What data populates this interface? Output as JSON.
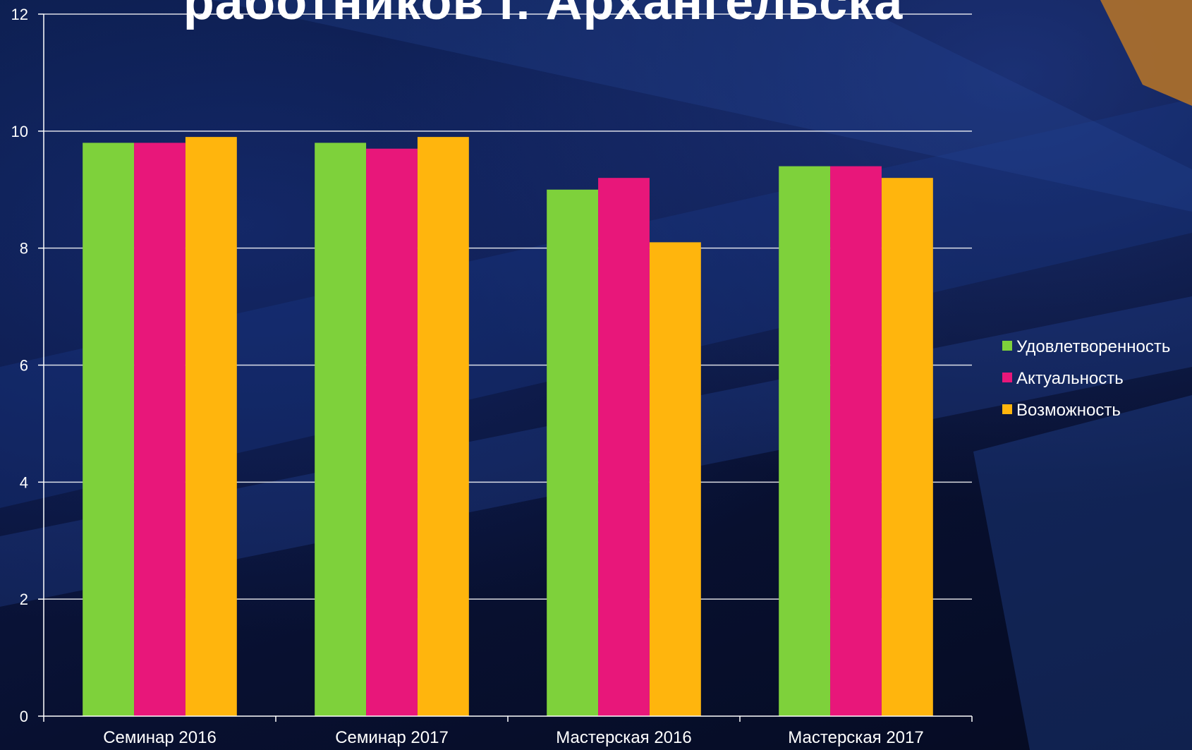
{
  "slide": {
    "title": "работников г. Архангельска"
  },
  "colors": {
    "grid": "#ffffff",
    "axis": "#ffffff",
    "text": "#ffffff"
  },
  "chart_data": {
    "type": "bar",
    "title": "",
    "xlabel": "",
    "ylabel": "",
    "categories": [
      "Семинар 2016",
      "Семинар 2017",
      "Мастерская 2016",
      "Мастерская 2017"
    ],
    "series": [
      {
        "name": "Удовлетворенность",
        "color": "#7ed13b",
        "values": [
          9.8,
          9.8,
          9.0,
          9.4
        ]
      },
      {
        "name": "Актуальность",
        "color": "#e8177a",
        "values": [
          9.8,
          9.7,
          9.2,
          9.4
        ]
      },
      {
        "name": "Возможность",
        "color": "#ffb50d",
        "values": [
          9.9,
          9.9,
          8.1,
          9.2
        ]
      }
    ],
    "ylim": [
      0,
      12
    ],
    "yticks": [
      0,
      2,
      4,
      6,
      8,
      10,
      12
    ],
    "grid": true,
    "legend": "right"
  }
}
